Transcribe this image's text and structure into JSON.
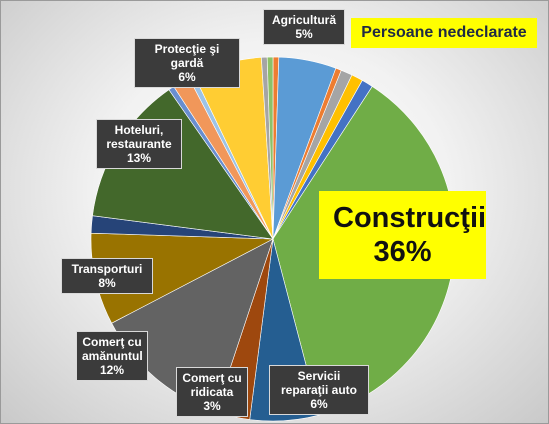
{
  "chart_data": {
    "type": "pie",
    "title": "Persoane nedeclarate",
    "categories": [
      null,
      "Agricultură",
      null,
      null,
      null,
      null,
      "Construcţii",
      "Servicii\nreparaţii auto",
      "Comerţ cu\nridicata",
      "Comerţ cu\namănuntul",
      "Transporturi",
      null,
      "Hoteluri,\nrestaurante",
      null,
      null,
      null,
      "Protecţie şi gardă",
      null,
      null
    ],
    "values": [
      0.5,
      5,
      0.5,
      1,
      1,
      1,
      36,
      6,
      3,
      12,
      8,
      1.5,
      13,
      0.5,
      1.5,
      0.5,
      6,
      0.5,
      0.5
    ],
    "value_labels": [
      null,
      "5%",
      null,
      null,
      null,
      null,
      "36%",
      "6%",
      "3%",
      "12%",
      "8%",
      null,
      "13%",
      null,
      null,
      null,
      "6%",
      null,
      null
    ],
    "colors": [
      "#ed7d31",
      "#5b9bd5",
      "#ed7d31",
      "#a5a5a5",
      "#ffc000",
      "#4472c4",
      "#70ad47",
      "#255e91",
      "#9e480e",
      "#636363",
      "#997300",
      "#264478",
      "#43682b",
      "#698ed0",
      "#f1975a",
      "#9dc3e6",
      "#ffcd33",
      "#a5a5a5",
      "#8cc168"
    ]
  }
}
